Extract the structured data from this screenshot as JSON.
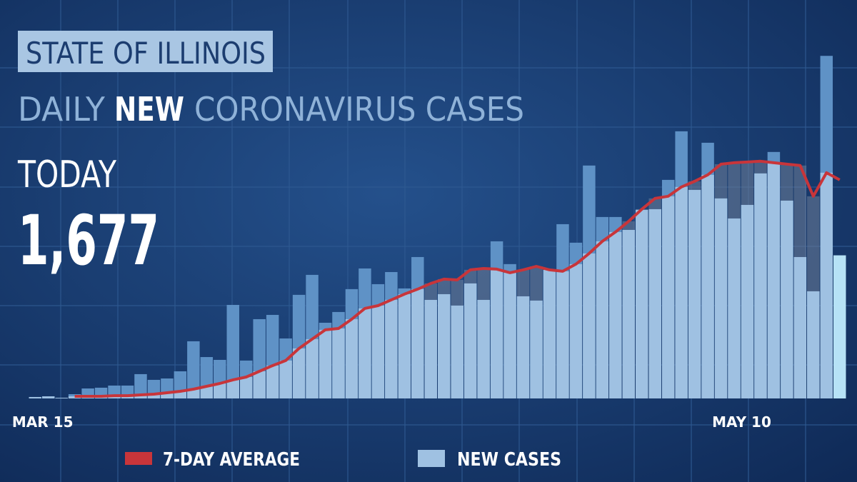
{
  "chart_data": {
    "type": "bar-line",
    "kicker": "STATE OF ILLINOIS",
    "title_parts": [
      "DAILY",
      "NEW",
      "CORONAVIRUS CASES"
    ],
    "today": {
      "label": "TODAY",
      "value": 1677,
      "value_label": "1,677"
    },
    "categories": [
      null,
      "MAR 15",
      null,
      null,
      null,
      null,
      null,
      null,
      null,
      null,
      null,
      null,
      null,
      null,
      null,
      null,
      null,
      null,
      null,
      null,
      null,
      null,
      null,
      null,
      null,
      null,
      null,
      null,
      null,
      null,
      null,
      null,
      null,
      null,
      null,
      null,
      null,
      null,
      null,
      null,
      null,
      null,
      null,
      null,
      null,
      null,
      null,
      null,
      null,
      null,
      null,
      null,
      null,
      null,
      "MAY 10",
      null,
      null,
      null,
      null,
      null,
      null,
      null
    ],
    "ylim": [
      0,
      4200
    ],
    "series": [
      {
        "name": "NEW CASES",
        "type": "bar",
        "color": "#9fc1e2",
        "above_color": "#5f92c6",
        "today_color": "#b6e2f6",
        "values": [
          17,
          25,
          8,
          50,
          117,
          126,
          151,
          151,
          285,
          218,
          234,
          318,
          670,
          485,
          452,
          1096,
          444,
          929,
          979,
          703,
          1214,
          1448,
          887,
          1013,
          1281,
          1523,
          1339,
          1481,
          1289,
          1657,
          1155,
          1222,
          1088,
          1348,
          1155,
          1841,
          1574,
          1197,
          1147,
          1507,
          2042,
          1825,
          2729,
          2126,
          2126,
          1975,
          2210,
          2218,
          2561,
          3130,
          2444,
          2996,
          2344,
          2109,
          2268,
          2637,
          2888,
          2318,
          1657,
          1256,
          4014,
          1677
        ]
      },
      {
        "name": "7-DAY AVERAGE",
        "type": "line",
        "color": "#c8353a",
        "values": [
          null,
          null,
          null,
          25,
          25,
          25,
          33,
          33,
          42,
          50,
          67,
          84,
          109,
          142,
          176,
          218,
          251,
          318,
          385,
          444,
          586,
          695,
          804,
          820,
          929,
          1055,
          1088,
          1155,
          1222,
          1281,
          1348,
          1398,
          1389,
          1507,
          1523,
          1515,
          1473,
          1507,
          1548,
          1507,
          1490,
          1574,
          1699,
          1841,
          1950,
          2076,
          2218,
          2344,
          2369,
          2478,
          2544,
          2620,
          2745,
          2762,
          2770,
          2779,
          2762,
          2745,
          2729,
          2369,
          2645,
          2561
        ]
      }
    ]
  }
}
